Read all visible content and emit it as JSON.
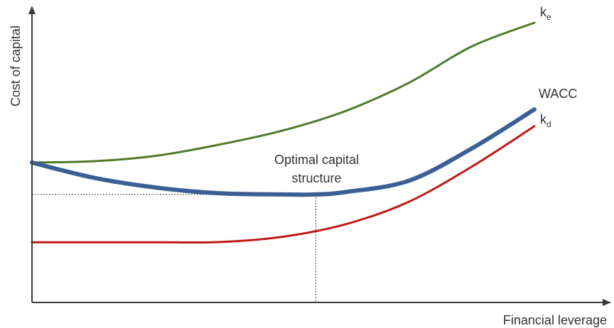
{
  "chart_data": {
    "type": "line",
    "title": "",
    "xlabel": "Financial leverage",
    "ylabel": "Cost of capital",
    "xlim": [
      0,
      100
    ],
    "ylim": [
      0,
      100
    ],
    "grid": false,
    "series": [
      {
        "name": "ke",
        "label_main": "k",
        "label_sub": "e",
        "color": "#4e7a2a",
        "stroke_width": 3,
        "x": [
          0,
          12.5,
          25,
          37.5,
          50,
          62.5,
          75,
          87.5,
          100
        ],
        "y": [
          50,
          50.5,
          52.5,
          56.5,
          61.5,
          68.5,
          78.5,
          91.5,
          100
        ]
      },
      {
        "name": "WACC",
        "label_main": "WACC",
        "label_sub": "",
        "color": "#3a5f94",
        "stroke_width": 6,
        "x": [
          0,
          12.5,
          25,
          37.5,
          50,
          56.5,
          62.5,
          75,
          87.5,
          100
        ],
        "y": [
          50,
          44.5,
          41,
          39,
          38.6,
          38.6,
          39.5,
          43.5,
          55,
          69
        ]
      },
      {
        "name": "kd",
        "label_main": "k",
        "label_sub": "d",
        "color": "#c01818",
        "stroke_width": 3,
        "x": [
          0,
          12.5,
          25,
          37.5,
          50,
          62.5,
          75,
          87.5,
          100
        ],
        "y": [
          21.5,
          21.5,
          21.5,
          21.6,
          23.5,
          28,
          36,
          48.5,
          63
        ]
      }
    ],
    "annotations": [
      {
        "text_lines": [
          "Optimal capital",
          "structure"
        ],
        "x": 56.5,
        "y": 38.6
      }
    ]
  }
}
